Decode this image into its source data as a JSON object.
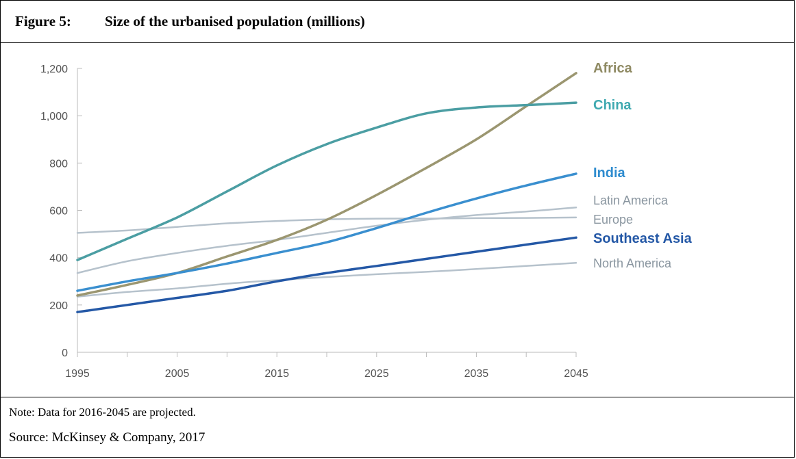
{
  "figure": {
    "number": "Figure 5:",
    "title": "Size of the urbanised population (millions)"
  },
  "footer": {
    "note": "Note: Data for 2016-2045 are projected.",
    "source": "Source: McKinsey & Company, 2017"
  },
  "chart_data": {
    "type": "line",
    "title": "Size of the urbanised population (millions)",
    "xlabel": "",
    "ylabel": "",
    "xlim": [
      1995,
      2045
    ],
    "ylim": [
      0,
      1200
    ],
    "x_ticks": [
      1995,
      2005,
      2015,
      2025,
      2035,
      2045
    ],
    "x_minor_ticks": [
      2000,
      2010,
      2020,
      2030,
      2040
    ],
    "y_ticks": [
      0,
      200,
      400,
      600,
      800,
      1000,
      1200
    ],
    "y_tick_labels": [
      "0",
      "200",
      "400",
      "600",
      "800",
      "1,000",
      "1,200"
    ],
    "grid": false,
    "legend": "direct labels at line ends (right)",
    "x": [
      1995,
      2000,
      2005,
      2010,
      2015,
      2020,
      2025,
      2030,
      2035,
      2040,
      2045
    ],
    "series": [
      {
        "name": "Africa",
        "color": "#9b9670",
        "label_color": "#8f8a63",
        "label_weight": "bold",
        "label_size": 20,
        "values": [
          240,
          285,
          335,
          405,
          475,
          560,
          665,
          780,
          900,
          1040,
          1180
        ]
      },
      {
        "name": "China",
        "color": "#4b9ea3",
        "label_color": "#3fa9b0",
        "label_weight": "bold",
        "label_size": 20,
        "values": [
          390,
          480,
          570,
          680,
          790,
          880,
          950,
          1010,
          1035,
          1045,
          1055
        ]
      },
      {
        "name": "India",
        "color": "#3a8fcf",
        "label_color": "#2f8ccf",
        "label_weight": "bold",
        "label_size": 20,
        "values": [
          260,
          300,
          335,
          375,
          420,
          465,
          525,
          590,
          650,
          705,
          755
        ]
      },
      {
        "name": "Latin America",
        "color": "#b6c2cc",
        "label_color": "#8a96a0",
        "label_weight": "normal",
        "label_size": 18,
        "values": [
          335,
          385,
          420,
          450,
          475,
          505,
          535,
          560,
          580,
          595,
          612
        ]
      },
      {
        "name": "Europe",
        "color": "#b6c2cc",
        "label_color": "#8a96a0",
        "label_weight": "normal",
        "label_size": 18,
        "values": [
          505,
          515,
          530,
          545,
          555,
          562,
          565,
          565,
          567,
          568,
          570
        ]
      },
      {
        "name": "Southeast Asia",
        "color": "#2458a6",
        "label_color": "#2458a6",
        "label_weight": "bold",
        "label_size": 20,
        "values": [
          170,
          200,
          230,
          260,
          300,
          335,
          365,
          395,
          425,
          455,
          485
        ]
      },
      {
        "name": "North America",
        "color": "#b6c2cc",
        "label_color": "#8a96a0",
        "label_weight": "normal",
        "label_size": 18,
        "values": [
          235,
          255,
          270,
          290,
          305,
          318,
          330,
          340,
          352,
          365,
          378
        ]
      }
    ]
  }
}
